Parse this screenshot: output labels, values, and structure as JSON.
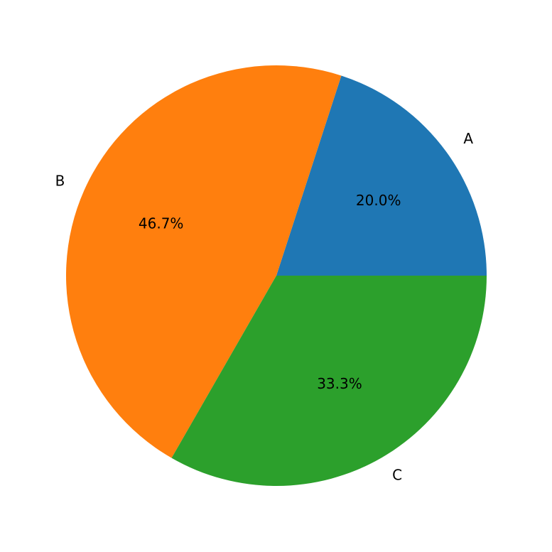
{
  "chart_data": {
    "type": "pie",
    "categories": [
      "A",
      "B",
      "C"
    ],
    "values": [
      20.0,
      46.7,
      33.3
    ],
    "value_labels": [
      "20.0%",
      "46.7%",
      "33.3%"
    ],
    "colors": [
      "#1f77b4",
      "#ff7f0e",
      "#2ca02c"
    ]
  }
}
